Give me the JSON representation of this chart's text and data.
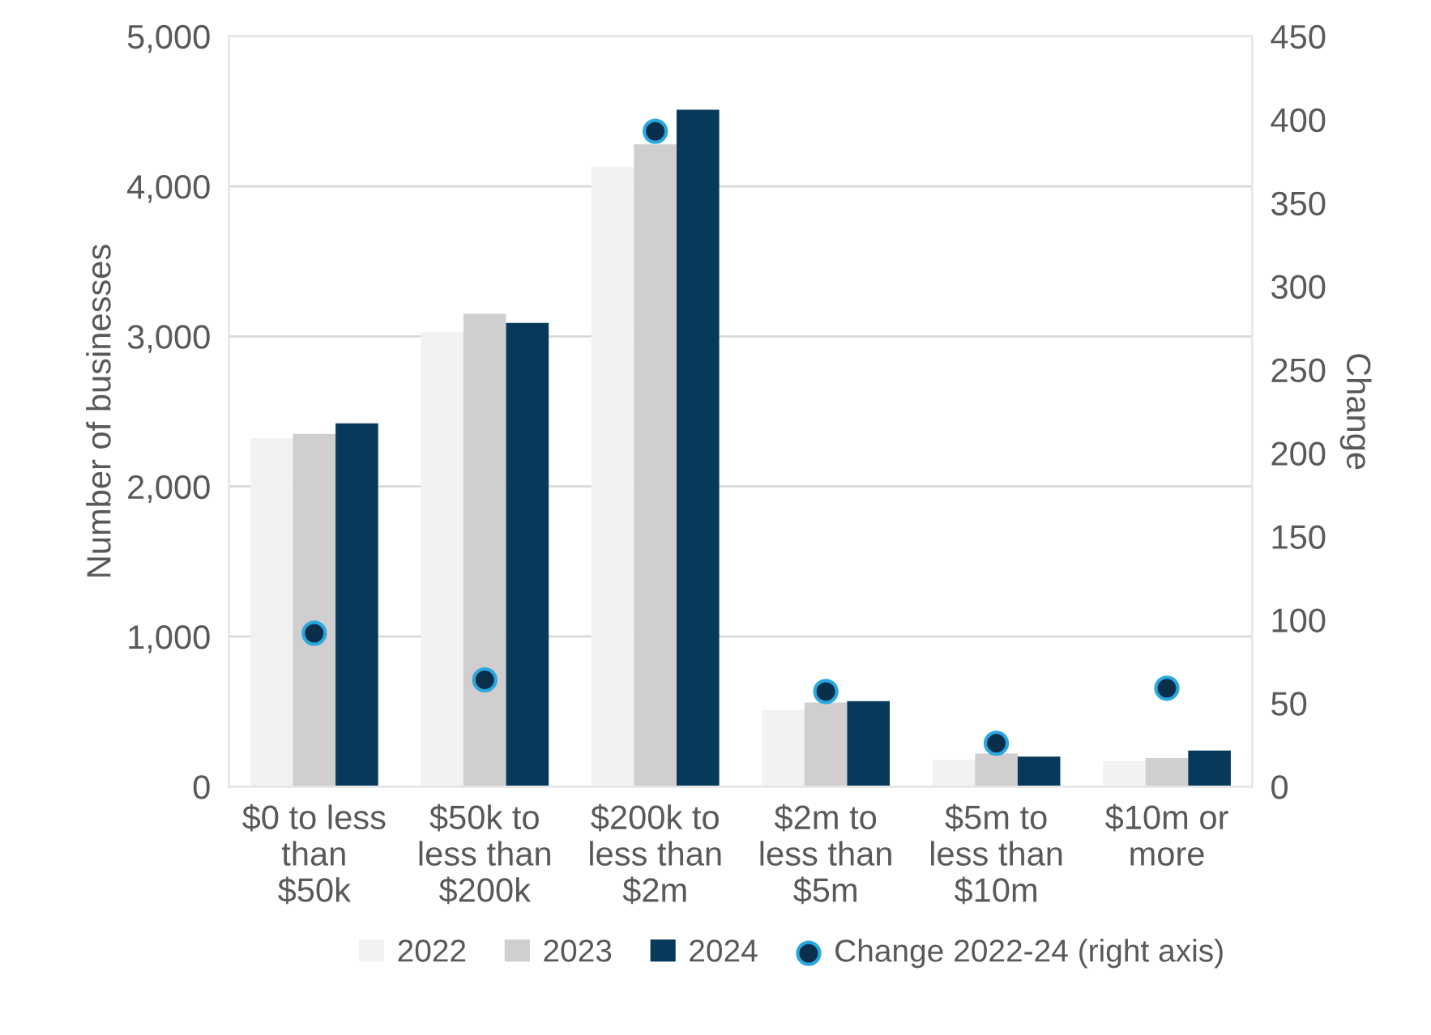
{
  "chart_data": {
    "type": "bar",
    "ylabel": "Number of businesses",
    "y2label": "Change",
    "categories": [
      "$0 to less\nthan\n$50k",
      "$50k to\nless than\n$200k",
      "$200k to\nless than\n$2m",
      "$2m to\nless than\n$5m",
      "$5m to\nless than\n$10m",
      "$10m or\nmore"
    ],
    "series": [
      {
        "name": "2022",
        "color": "#f2f2f2",
        "values": [
          2320,
          3030,
          4130,
          510,
          180,
          170
        ]
      },
      {
        "name": "2023",
        "color": "#d0cece",
        "values": [
          2350,
          3150,
          4280,
          560,
          220,
          190
        ]
      },
      {
        "name": "2024",
        "color": "#073a5a",
        "values": [
          2420,
          3090,
          4510,
          570,
          200,
          240
        ]
      },
      {
        "name": "Change 2022-24 (right axis)",
        "type": "scatter",
        "axis": "y2",
        "color": "#0b2e4a",
        "values": [
          92,
          64,
          393,
          57,
          26,
          59
        ]
      }
    ],
    "ylim": [
      0,
      5000
    ],
    "yticks": [
      {
        "value": 0,
        "label": "0"
      },
      {
        "value": 1000,
        "label": "1,000"
      },
      {
        "value": 2000,
        "label": "2,000"
      },
      {
        "value": 3000,
        "label": "3,000"
      },
      {
        "value": 4000,
        "label": "4,000"
      },
      {
        "value": 5000,
        "label": "5,000"
      }
    ],
    "y2lim": [
      0,
      450
    ],
    "y2ticks": [
      0,
      50,
      100,
      150,
      200,
      250,
      300,
      350,
      400,
      450
    ],
    "grid": "y",
    "legend": "bottom",
    "marker": "circle"
  }
}
